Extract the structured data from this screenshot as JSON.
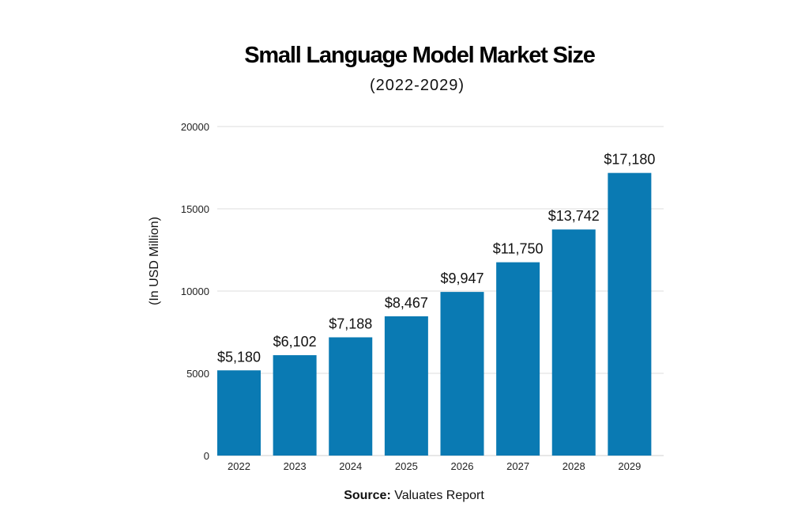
{
  "chart_data": {
    "type": "bar",
    "title": "Small Language Model Market Size",
    "subtitle": "(2022-2029)",
    "categories": [
      "2022",
      "2023",
      "2024",
      "2025",
      "2026",
      "2027",
      "2028",
      "2029"
    ],
    "values": [
      5180,
      6102,
      7188,
      8467,
      9947,
      11750,
      13742,
      17180
    ],
    "data_labels": [
      "$5,180",
      "$6,102",
      "$7,188",
      "$8,467",
      "$9,947",
      "$11,750",
      "$13,742",
      "$17,180"
    ],
    "xlabel": "",
    "ylabel": "(In USD Million)",
    "ylim": [
      0,
      20000
    ],
    "yticks": [
      "0",
      "5000",
      "10000",
      "15000",
      "20000"
    ],
    "grid": true,
    "bar_color": "#0a7ab3",
    "grid_color": "#dcdcdc"
  },
  "source": {
    "label": "Source:",
    "text": "Valuates Report"
  }
}
